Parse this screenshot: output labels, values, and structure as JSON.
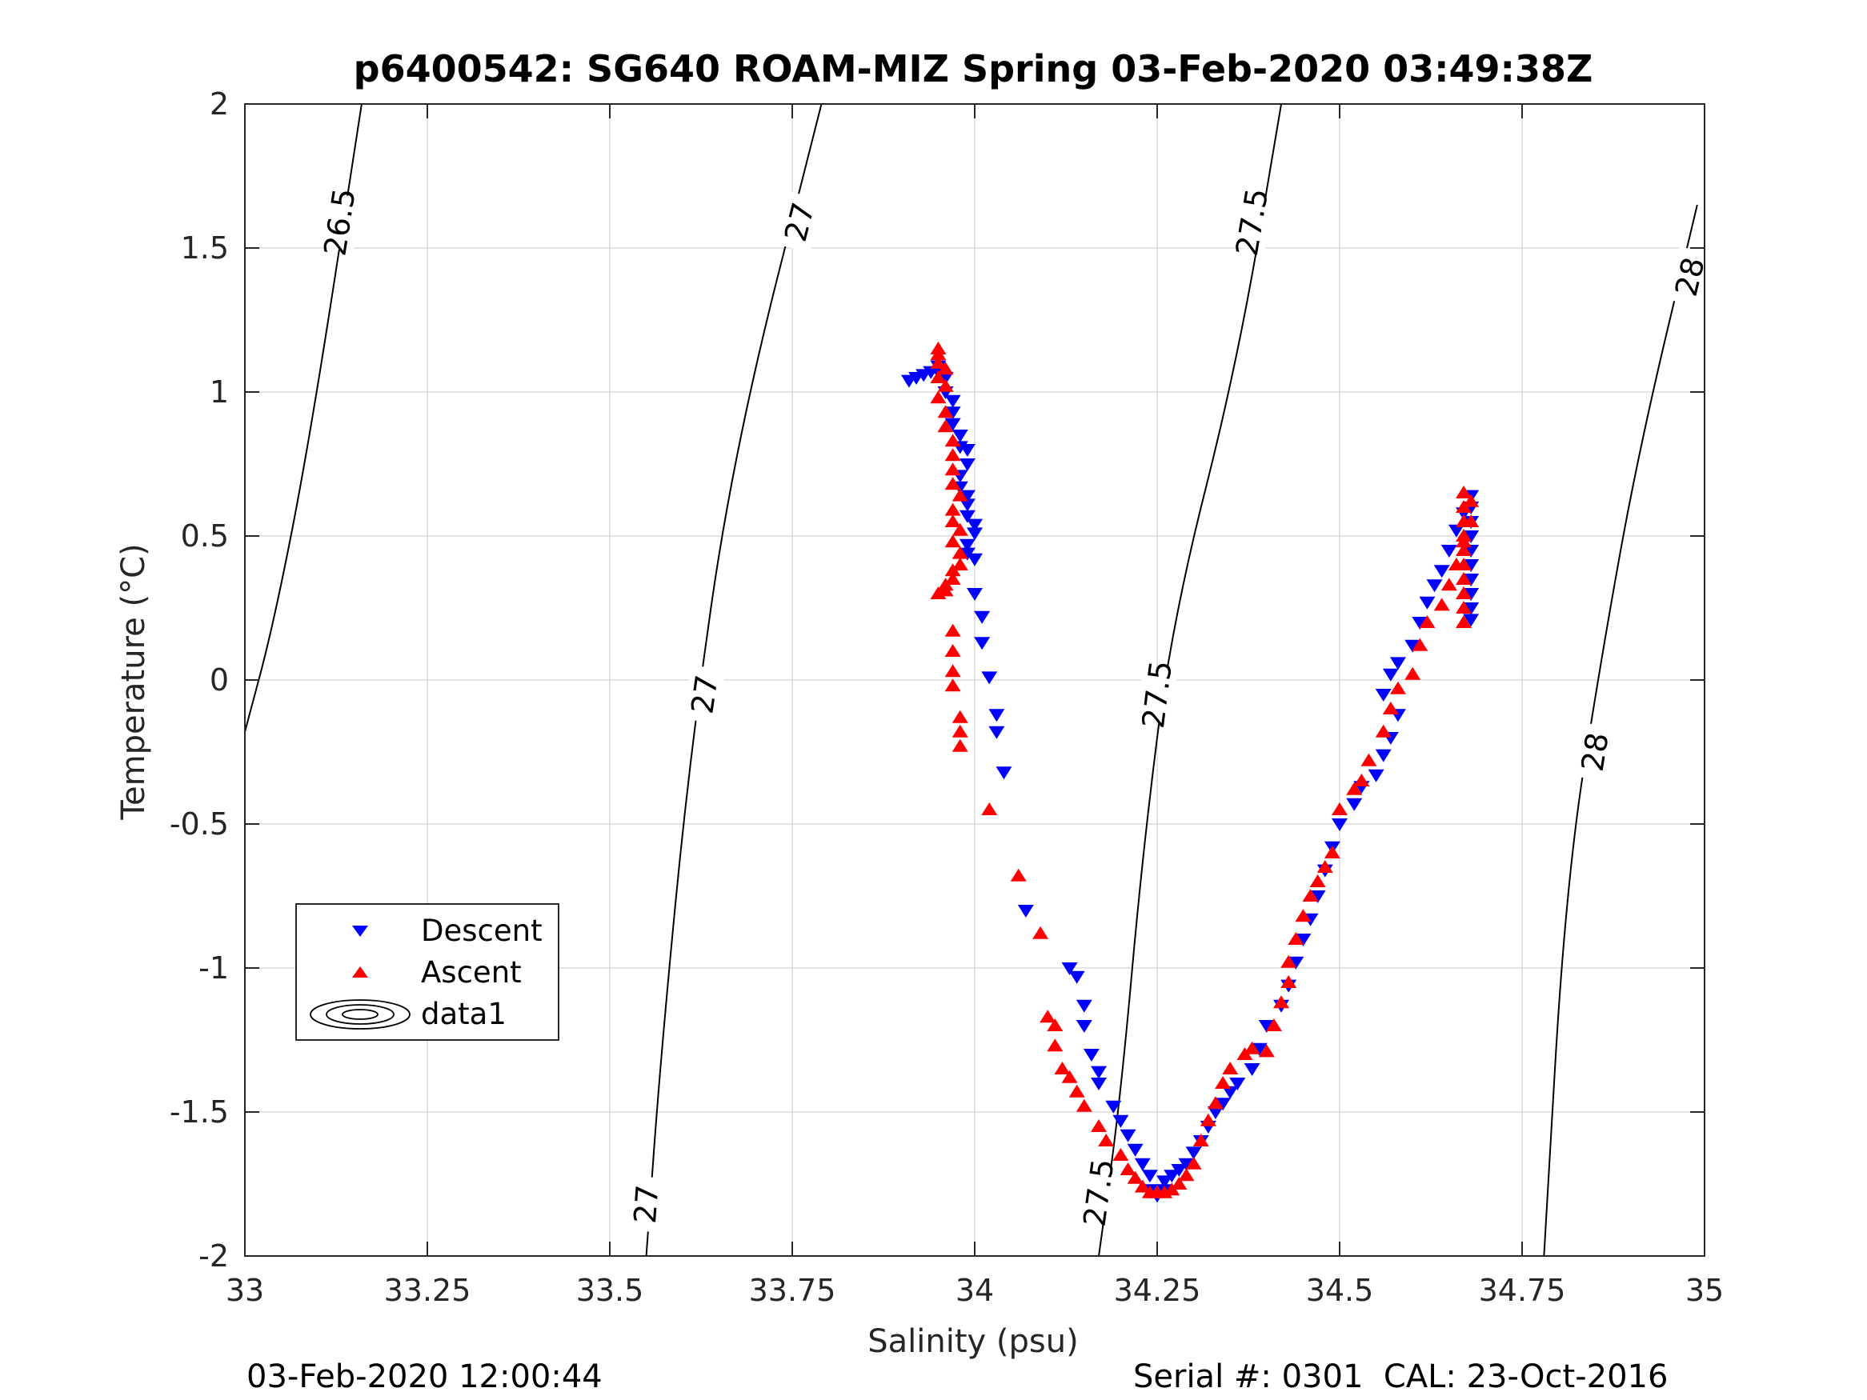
{
  "chart_data": {
    "type": "scatter",
    "title": "p6400542: SG640 ROAM-MIZ Spring 03-Feb-2020 03:49:38Z",
    "xlabel": "Salinity (psu)",
    "ylabel": "Temperature (°C)",
    "xlim": [
      33,
      35
    ],
    "ylim": [
      -2,
      2
    ],
    "x_ticks": [
      33,
      33.25,
      33.5,
      33.75,
      34,
      34.25,
      34.5,
      34.75,
      35
    ],
    "x_tick_labels": [
      "33",
      "33.25",
      "33.5",
      "33.75",
      "34",
      "34.25",
      "34.5",
      "34.75",
      "35"
    ],
    "y_ticks": [
      -2,
      -1.5,
      -1,
      -0.5,
      0,
      0.5,
      1,
      1.5,
      2
    ],
    "y_tick_labels": [
      "-2",
      "-1.5",
      "-1",
      "-0.5",
      "0",
      "0.5",
      "1",
      "1.5",
      "2"
    ],
    "grid": true,
    "legend_position": "lower-left",
    "series": [
      {
        "name": "Descent",
        "marker": "triangle-down",
        "color": "#0000ff",
        "points": [
          [
            33.91,
            1.04
          ],
          [
            33.92,
            1.05
          ],
          [
            33.93,
            1.06
          ],
          [
            33.94,
            1.07
          ],
          [
            33.95,
            1.09
          ],
          [
            33.95,
            1.07
          ],
          [
            33.96,
            1.05
          ],
          [
            33.96,
            1.0
          ],
          [
            33.97,
            0.97
          ],
          [
            33.97,
            0.93
          ],
          [
            33.97,
            0.89
          ],
          [
            33.98,
            0.85
          ],
          [
            33.98,
            0.81
          ],
          [
            33.99,
            0.8
          ],
          [
            33.99,
            0.75
          ],
          [
            33.98,
            0.71
          ],
          [
            33.98,
            0.67
          ],
          [
            33.99,
            0.64
          ],
          [
            33.99,
            0.61
          ],
          [
            33.99,
            0.57
          ],
          [
            34.0,
            0.54
          ],
          [
            34.0,
            0.51
          ],
          [
            33.99,
            0.47
          ],
          [
            33.99,
            0.44
          ],
          [
            34.0,
            0.42
          ],
          [
            34.0,
            0.3
          ],
          [
            34.01,
            0.22
          ],
          [
            34.01,
            0.13
          ],
          [
            34.02,
            0.01
          ],
          [
            34.03,
            -0.12
          ],
          [
            34.03,
            -0.18
          ],
          [
            34.04,
            -0.32
          ],
          [
            34.07,
            -0.8
          ],
          [
            34.13,
            -1.0
          ],
          [
            34.14,
            -1.03
          ],
          [
            34.15,
            -1.13
          ],
          [
            34.15,
            -1.2
          ],
          [
            34.16,
            -1.3
          ],
          [
            34.17,
            -1.36
          ],
          [
            34.17,
            -1.4
          ],
          [
            34.19,
            -1.48
          ],
          [
            34.2,
            -1.53
          ],
          [
            34.21,
            -1.58
          ],
          [
            34.22,
            -1.63
          ],
          [
            34.23,
            -1.68
          ],
          [
            34.24,
            -1.72
          ],
          [
            34.24,
            -1.77
          ],
          [
            34.25,
            -1.79
          ],
          [
            34.26,
            -1.77
          ],
          [
            34.26,
            -1.74
          ],
          [
            34.27,
            -1.72
          ],
          [
            34.28,
            -1.7
          ],
          [
            34.29,
            -1.68
          ],
          [
            34.3,
            -1.64
          ],
          [
            34.31,
            -1.6
          ],
          [
            34.32,
            -1.55
          ],
          [
            34.33,
            -1.5
          ],
          [
            34.34,
            -1.47
          ],
          [
            34.35,
            -1.43
          ],
          [
            34.36,
            -1.4
          ],
          [
            34.38,
            -1.35
          ],
          [
            34.39,
            -1.28
          ],
          [
            34.4,
            -1.2
          ],
          [
            34.42,
            -1.13
          ],
          [
            34.43,
            -1.06
          ],
          [
            34.44,
            -0.98
          ],
          [
            34.45,
            -0.9
          ],
          [
            34.46,
            -0.83
          ],
          [
            34.47,
            -0.75
          ],
          [
            34.48,
            -0.66
          ],
          [
            34.49,
            -0.58
          ],
          [
            34.5,
            -0.5
          ],
          [
            34.52,
            -0.43
          ],
          [
            34.53,
            -0.37
          ],
          [
            34.55,
            -0.33
          ],
          [
            34.56,
            -0.26
          ],
          [
            34.57,
            -0.2
          ],
          [
            34.58,
            -0.12
          ],
          [
            34.56,
            -0.05
          ],
          [
            34.57,
            0.02
          ],
          [
            34.58,
            0.06
          ],
          [
            34.6,
            0.12
          ],
          [
            34.61,
            0.2
          ],
          [
            34.62,
            0.27
          ],
          [
            34.63,
            0.33
          ],
          [
            34.64,
            0.38
          ],
          [
            34.65,
            0.45
          ],
          [
            34.66,
            0.52
          ],
          [
            34.67,
            0.58
          ],
          [
            34.68,
            0.64
          ],
          [
            34.68,
            0.6
          ],
          [
            34.68,
            0.55
          ],
          [
            34.68,
            0.5
          ],
          [
            34.68,
            0.45
          ],
          [
            34.68,
            0.4
          ],
          [
            34.68,
            0.35
          ],
          [
            34.68,
            0.3
          ],
          [
            34.68,
            0.25
          ],
          [
            34.68,
            0.21
          ]
        ]
      },
      {
        "name": "Ascent",
        "marker": "triangle-up",
        "color": "#ff0000",
        "points": [
          [
            33.95,
            1.15
          ],
          [
            33.95,
            1.13
          ],
          [
            33.95,
            1.1
          ],
          [
            33.96,
            1.08
          ],
          [
            33.95,
            1.05
          ],
          [
            33.96,
            1.02
          ],
          [
            33.95,
            0.98
          ],
          [
            33.96,
            0.93
          ],
          [
            33.96,
            0.88
          ],
          [
            33.97,
            0.83
          ],
          [
            33.97,
            0.78
          ],
          [
            33.97,
            0.73
          ],
          [
            33.97,
            0.68
          ],
          [
            33.98,
            0.64
          ],
          [
            33.97,
            0.59
          ],
          [
            33.97,
            0.55
          ],
          [
            33.98,
            0.52
          ],
          [
            33.97,
            0.48
          ],
          [
            33.98,
            0.44
          ],
          [
            33.98,
            0.4
          ],
          [
            33.97,
            0.38
          ],
          [
            33.97,
            0.35
          ],
          [
            33.96,
            0.33
          ],
          [
            33.96,
            0.31
          ],
          [
            33.95,
            0.3
          ],
          [
            33.97,
            0.17
          ],
          [
            33.97,
            0.1
          ],
          [
            33.97,
            0.03
          ],
          [
            33.97,
            -0.02
          ],
          [
            33.98,
            -0.13
          ],
          [
            33.98,
            -0.18
          ],
          [
            33.98,
            -0.23
          ],
          [
            34.02,
            -0.45
          ],
          [
            34.06,
            -0.68
          ],
          [
            34.09,
            -0.88
          ],
          [
            34.1,
            -1.17
          ],
          [
            34.11,
            -1.2
          ],
          [
            34.11,
            -1.27
          ],
          [
            34.12,
            -1.35
          ],
          [
            34.13,
            -1.38
          ],
          [
            34.14,
            -1.43
          ],
          [
            34.15,
            -1.48
          ],
          [
            34.17,
            -1.55
          ],
          [
            34.18,
            -1.6
          ],
          [
            34.2,
            -1.65
          ],
          [
            34.21,
            -1.7
          ],
          [
            34.22,
            -1.73
          ],
          [
            34.23,
            -1.76
          ],
          [
            34.24,
            -1.78
          ],
          [
            34.25,
            -1.78
          ],
          [
            34.26,
            -1.78
          ],
          [
            34.27,
            -1.77
          ],
          [
            34.28,
            -1.75
          ],
          [
            34.29,
            -1.72
          ],
          [
            34.3,
            -1.68
          ],
          [
            34.31,
            -1.6
          ],
          [
            34.32,
            -1.53
          ],
          [
            34.33,
            -1.47
          ],
          [
            34.34,
            -1.4
          ],
          [
            34.35,
            -1.35
          ],
          [
            34.37,
            -1.3
          ],
          [
            34.38,
            -1.28
          ],
          [
            34.4,
            -1.29
          ],
          [
            34.41,
            -1.2
          ],
          [
            34.42,
            -1.12
          ],
          [
            34.43,
            -1.05
          ],
          [
            34.43,
            -0.98
          ],
          [
            34.44,
            -0.9
          ],
          [
            34.45,
            -0.82
          ],
          [
            34.46,
            -0.75
          ],
          [
            34.47,
            -0.7
          ],
          [
            34.48,
            -0.65
          ],
          [
            34.49,
            -0.6
          ],
          [
            34.5,
            -0.45
          ],
          [
            34.52,
            -0.38
          ],
          [
            34.53,
            -0.35
          ],
          [
            34.54,
            -0.28
          ],
          [
            34.56,
            -0.18
          ],
          [
            34.57,
            -0.1
          ],
          [
            34.58,
            -0.03
          ],
          [
            34.6,
            0.02
          ],
          [
            34.61,
            0.12
          ],
          [
            34.62,
            0.2
          ],
          [
            34.64,
            0.26
          ],
          [
            34.65,
            0.33
          ],
          [
            34.66,
            0.4
          ],
          [
            34.67,
            0.48
          ],
          [
            34.68,
            0.55
          ],
          [
            34.68,
            0.62
          ],
          [
            34.67,
            0.65
          ],
          [
            34.67,
            0.6
          ],
          [
            34.67,
            0.55
          ],
          [
            34.67,
            0.5
          ],
          [
            34.67,
            0.45
          ],
          [
            34.67,
            0.4
          ],
          [
            34.67,
            0.35
          ],
          [
            34.67,
            0.3
          ],
          [
            34.67,
            0.25
          ],
          [
            34.67,
            0.2
          ]
        ]
      }
    ],
    "contours": {
      "name": "data1",
      "color": "#000000",
      "levels": [
        {
          "label": "26.5",
          "points": [
            [
              33.0,
              -0.18
            ],
            [
              33.04,
              0.2
            ],
            [
              33.09,
              0.85
            ],
            [
              33.16,
              2.0
            ]
          ],
          "label_positions": [
            [
              33.13,
              1.59
            ]
          ]
        },
        {
          "label": "27",
          "points": [
            [
              33.55,
              -2.0
            ],
            [
              33.57,
              -1.3
            ],
            [
              33.61,
              -0.25
            ],
            [
              33.67,
              0.8
            ],
            [
              33.79,
              2.0
            ]
          ],
          "label_positions": [
            [
              33.55,
              -1.82
            ],
            [
              33.63,
              -0.05
            ],
            [
              33.76,
              1.59
            ]
          ]
        },
        {
          "label": "27.5",
          "points": [
            [
              34.17,
              -2.0
            ],
            [
              34.2,
              -1.45
            ],
            [
              34.23,
              -0.6
            ],
            [
              34.27,
              0.2
            ],
            [
              34.36,
              1.1
            ],
            [
              34.42,
              2.0
            ]
          ],
          "label_positions": [
            [
              34.17,
              -1.78
            ],
            [
              34.25,
              -0.05
            ],
            [
              34.38,
              1.59
            ]
          ]
        },
        {
          "label": "28",
          "points": [
            [
              34.78,
              -2.0
            ],
            [
              34.81,
              -0.7
            ],
            [
              34.86,
              0.1
            ],
            [
              34.91,
              0.8
            ],
            [
              34.99,
              1.65
            ]
          ],
          "label_positions": [
            [
              34.85,
              -0.25
            ],
            [
              34.98,
              1.4
            ]
          ]
        }
      ]
    }
  },
  "footer": {
    "left": "03-Feb-2020 12:00:44",
    "right": "Serial #: 0301  CAL: 23-Oct-2016"
  }
}
